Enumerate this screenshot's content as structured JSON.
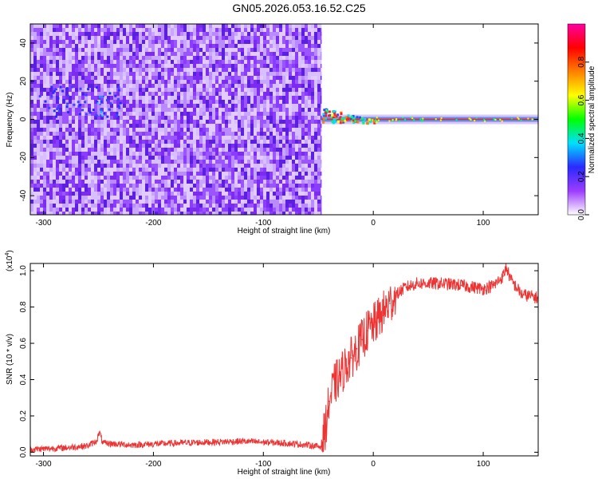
{
  "title": "GN05.2026.053.16.52.C25",
  "chart_data": [
    {
      "type": "heatmap",
      "name": "spectrogram",
      "xlabel": "Height of straight line (km)",
      "ylabel": "Frequency (Hz)",
      "xlim": [
        -312,
        150
      ],
      "ylim": [
        -50,
        50
      ],
      "xticks": [
        -300,
        -200,
        -100,
        0,
        100
      ],
      "yticks": [
        -40,
        -20,
        0,
        20,
        40
      ],
      "noise_region_x": [
        -312,
        -47
      ],
      "signal_region_x": [
        -47,
        150
      ],
      "signal_line_freq": 0,
      "colorbar": {
        "label": "Normalized spectral amplitude",
        "range": [
          0,
          1
        ],
        "ticks": [
          0.0,
          0.2,
          0.4,
          0.6,
          0.8
        ],
        "stops": [
          "#ffffff",
          "#9c3cff",
          "#2a2aff",
          "#00e0ff",
          "#00ff00",
          "#ffff00",
          "#ff8000",
          "#ff0000",
          "#ff00a0"
        ]
      }
    },
    {
      "type": "line",
      "name": "snr",
      "xlabel": "Height of straight line (km)",
      "ylabel": "SNR (10 * v/v)",
      "scale_label": "(x10",
      "scale_exp": "4",
      "scale_close": ")",
      "color": "#ee3333",
      "xlim": [
        -312,
        150
      ],
      "ylim": [
        -0.02,
        1.04
      ],
      "xticks": [
        -300,
        -200,
        -100,
        0,
        100
      ],
      "yticks": [
        0.0,
        0.2,
        0.4,
        0.6,
        0.8,
        1.0
      ],
      "x": [
        -312,
        -280,
        -260,
        -252,
        -249,
        -246,
        -220,
        -180,
        -150,
        -120,
        -80,
        -60,
        -48,
        -44,
        -40,
        -35,
        -30,
        -25,
        -20,
        -15,
        -10,
        -5,
        0,
        5,
        10,
        15,
        20,
        25,
        30,
        40,
        60,
        80,
        100,
        110,
        118,
        121,
        125,
        135,
        150
      ],
      "y": [
        0.015,
        0.025,
        0.035,
        0.06,
        0.11,
        0.05,
        0.04,
        0.05,
        0.055,
        0.06,
        0.05,
        0.04,
        0.03,
        0.12,
        0.28,
        0.38,
        0.42,
        0.48,
        0.52,
        0.57,
        0.62,
        0.67,
        0.7,
        0.74,
        0.78,
        0.82,
        0.86,
        0.89,
        0.91,
        0.93,
        0.93,
        0.92,
        0.9,
        0.92,
        0.97,
        1.02,
        0.95,
        0.87,
        0.85
      ]
    }
  ]
}
